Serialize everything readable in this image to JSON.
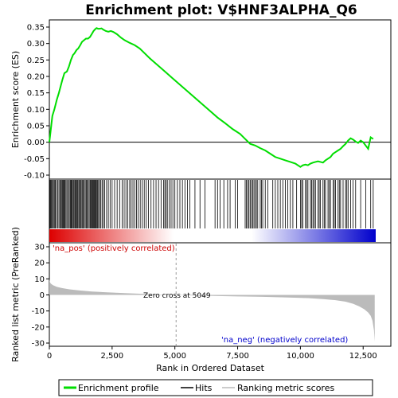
{
  "chart_data": [
    {
      "type": "line",
      "panel": "enrichment",
      "title": "Enrichment plot: V$HNF3ALPHA_Q6",
      "ylabel": "Enrichment score (ES)",
      "ylim": [
        -0.1,
        0.35
      ],
      "yticks": [
        -0.1,
        -0.05,
        0.0,
        0.05,
        0.1,
        0.15,
        0.2,
        0.25,
        0.3,
        0.35
      ],
      "ytick_labels": [
        "-0.10",
        "-0.05",
        "0.00",
        "0.05",
        "0.10",
        "0.15",
        "0.20",
        "0.25",
        "0.30",
        "0.35"
      ],
      "xlim": [
        0,
        13000
      ],
      "grid": false,
      "series": [
        {
          "name": "Enrichment profile",
          "color": "#00dd00",
          "x": [
            0,
            60,
            120,
            200,
            300,
            380,
            450,
            520,
            600,
            700,
            780,
            860,
            940,
            1000,
            1080,
            1150,
            1230,
            1300,
            1380,
            1460,
            1540,
            1620,
            1700,
            1760,
            1820,
            1880,
            1940,
            2000,
            2080,
            2150,
            2250,
            2350,
            2450,
            2550,
            2700,
            2850,
            3000,
            3200,
            3400,
            3600,
            3800,
            4000,
            4300,
            4600,
            4900,
            5200,
            5500,
            5800,
            6100,
            6400,
            6700,
            7000,
            7300,
            7600,
            7800,
            8000,
            8200,
            8400,
            8600,
            8800,
            9000,
            9200,
            9400,
            9600,
            9800,
            10000,
            10100,
            10200,
            10300,
            10400,
            10500,
            10600,
            10700,
            10800,
            10900,
            11000,
            11100,
            11200,
            11300,
            11400,
            11500,
            11600,
            11700,
            11800,
            11900,
            12000,
            12100,
            12200,
            12300,
            12400,
            12500,
            12600,
            12700,
            12800,
            12900
          ],
          "values": [
            0.0,
            0.04,
            0.08,
            0.1,
            0.13,
            0.15,
            0.17,
            0.19,
            0.21,
            0.215,
            0.23,
            0.25,
            0.265,
            0.27,
            0.28,
            0.285,
            0.295,
            0.305,
            0.31,
            0.315,
            0.315,
            0.32,
            0.33,
            0.338,
            0.343,
            0.347,
            0.345,
            0.345,
            0.346,
            0.342,
            0.338,
            0.336,
            0.338,
            0.335,
            0.328,
            0.318,
            0.31,
            0.302,
            0.295,
            0.285,
            0.27,
            0.255,
            0.235,
            0.215,
            0.195,
            0.175,
            0.155,
            0.135,
            0.115,
            0.095,
            0.075,
            0.058,
            0.04,
            0.025,
            0.01,
            -0.005,
            -0.01,
            -0.018,
            -0.025,
            -0.035,
            -0.045,
            -0.05,
            -0.055,
            -0.06,
            -0.065,
            -0.075,
            -0.07,
            -0.068,
            -0.07,
            -0.065,
            -0.062,
            -0.06,
            -0.058,
            -0.06,
            -0.062,
            -0.055,
            -0.05,
            -0.045,
            -0.035,
            -0.03,
            -0.025,
            -0.02,
            -0.012,
            -0.005,
            0.005,
            0.012,
            0.008,
            0.002,
            -0.002,
            0.005,
            0.0,
            -0.01,
            -0.02,
            0.015,
            0.01
          ]
        }
      ],
      "zero_line": 0.0
    },
    {
      "type": "hits",
      "panel": "hits",
      "xlim": [
        0,
        13000
      ],
      "hit_color": "#000000",
      "hit_positions": [
        30,
        60,
        90,
        130,
        160,
        200,
        240,
        280,
        330,
        380,
        420,
        460,
        500,
        530,
        560,
        590,
        620,
        660,
        700,
        740,
        790,
        830,
        860,
        890,
        920,
        960,
        990,
        1030,
        1060,
        1100,
        1130,
        1170,
        1200,
        1240,
        1270,
        1310,
        1350,
        1390,
        1430,
        1470,
        1510,
        1550,
        1590,
        1630,
        1660,
        1700,
        1730,
        1760,
        1790,
        1820,
        1850,
        1880,
        1920,
        1960,
        2000,
        2050,
        2100,
        2150,
        2200,
        2280,
        2350,
        2420,
        2500,
        2600,
        2700,
        2800,
        2900,
        2980,
        3050,
        3120,
        3200,
        3260,
        3330,
        3400,
        3470,
        3540,
        3620,
        3700,
        3780,
        3860,
        3950,
        4050,
        4150,
        4250,
        4350,
        4450,
        4550,
        4600,
        4650,
        4700,
        4780,
        4850,
        4920,
        5000,
        5100,
        5200,
        5300,
        5400,
        5500,
        5600,
        5800,
        6000,
        6200,
        6600,
        6700,
        6800,
        6950,
        7100,
        7200,
        7400,
        7500,
        7800,
        7850,
        7900,
        7950,
        8000,
        8050,
        8100,
        8150,
        8200,
        8250,
        8300,
        8400,
        8450,
        8500,
        8600,
        8700,
        8900,
        9000,
        9100,
        9200,
        9300,
        9400,
        9500,
        9600,
        9700,
        9850,
        10000,
        10050,
        10100,
        10200,
        10250,
        10300,
        10400,
        10450,
        10500,
        10550,
        10600,
        10700,
        10750,
        10800,
        10900,
        10950,
        11000,
        11100,
        11150,
        11200,
        11300,
        11350,
        11400,
        11500,
        11550,
        11600,
        11700,
        11800,
        11850,
        11900,
        12000,
        12100,
        12200,
        12400,
        12600,
        12800,
        12900
      ],
      "gradient": {
        "left_color": "#dd0000",
        "mid_color": "#ffffff",
        "right_color": "#0000cc"
      }
    },
    {
      "type": "area",
      "panel": "ranked_metric",
      "ylabel": "Ranked list metric (PreRanked)",
      "xlabel": "Rank in Ordered Dataset",
      "ylim": [
        -30,
        30
      ],
      "yticks": [
        -30,
        -20,
        -10,
        0,
        10,
        20,
        30
      ],
      "ytick_labels": [
        "-30",
        "-20",
        "-10",
        "0",
        "10",
        "20",
        "30"
      ],
      "xlim": [
        0,
        13000
      ],
      "xticks": [
        0,
        2500,
        5000,
        7500,
        10000,
        12500
      ],
      "xtick_labels": [
        "0",
        "2,500",
        "5,000",
        "7,500",
        "10,000",
        "12,500"
      ],
      "fill_color": "#bbbbbb",
      "x": [
        0,
        20,
        60,
        150,
        300,
        500,
        800,
        1200,
        1700,
        2300,
        3000,
        3800,
        4500,
        5049,
        5600,
        6500,
        7500,
        8500,
        9500,
        10300,
        10900,
        11400,
        11800,
        12100,
        12350,
        12550,
        12700,
        12800,
        12870,
        12930,
        12960
      ],
      "values": [
        10,
        8,
        7,
        6,
        5,
        4.3,
        3.5,
        2.8,
        2.1,
        1.6,
        1.1,
        0.6,
        0.2,
        0,
        -0.3,
        -0.6,
        -0.9,
        -1.2,
        -1.6,
        -2.0,
        -2.6,
        -3.3,
        -4.2,
        -5.5,
        -7.2,
        -9.0,
        -11,
        -13,
        -16,
        -22,
        -29
      ],
      "zero_cross": 5049,
      "annotations": {
        "pos": "'na_pos' (positively correlated)",
        "neg": "'na_neg' (negatively correlated)",
        "zero": "Zero cross at 5049"
      }
    }
  ],
  "legend": {
    "items": [
      {
        "label": "Enrichment profile",
        "color": "#00dd00"
      },
      {
        "label": "Hits",
        "color": "#000000"
      },
      {
        "label": "Ranking metric scores",
        "color": "#bbbbbb"
      }
    ]
  }
}
